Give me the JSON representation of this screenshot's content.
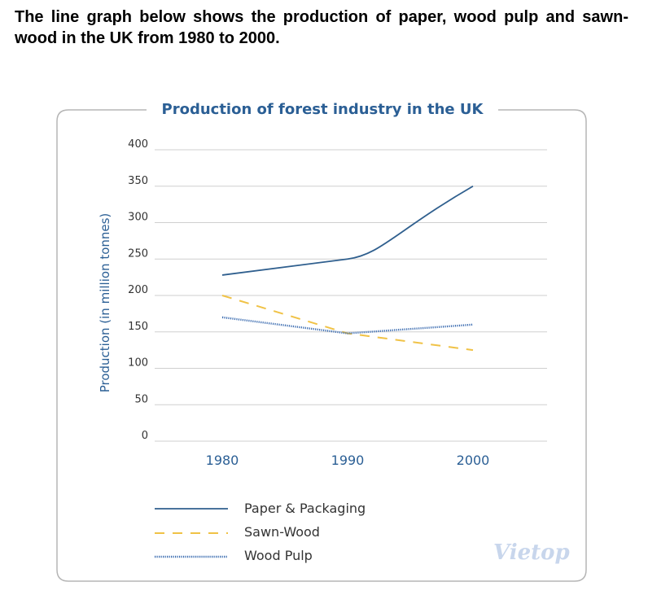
{
  "question": "The line graph below shows the production of paper, wood pulp and sawn-wood in the UK from 1980 to 2000.",
  "colors": {
    "paper": "#2f5f8e",
    "sawn": "#f0c246",
    "pulp": "#3a6bb0",
    "title": "#2b5f95",
    "grid": "#cfcfcf"
  },
  "logo": "Vietop",
  "chart_data": {
    "type": "line",
    "title": "Production of forest industry in the UK",
    "xlabel": "",
    "ylabel": "Production (in million tonnes)",
    "categories": [
      "1980",
      "1990",
      "2000"
    ],
    "ylim": [
      0,
      400
    ],
    "yticks": [
      "0",
      "50",
      "100",
      "150",
      "200",
      "250",
      "300",
      "350",
      "400"
    ],
    "grid": true,
    "legend_position": "bottom",
    "series": [
      {
        "name": "Paper & Packaging",
        "values": [
          228,
          250,
          350
        ],
        "style": "solid"
      },
      {
        "name": "Sawn-Wood",
        "values": [
          200,
          148,
          125
        ],
        "style": "dashed"
      },
      {
        "name": "Wood Pulp",
        "values": [
          170,
          148,
          160
        ],
        "style": "dotted"
      }
    ]
  }
}
